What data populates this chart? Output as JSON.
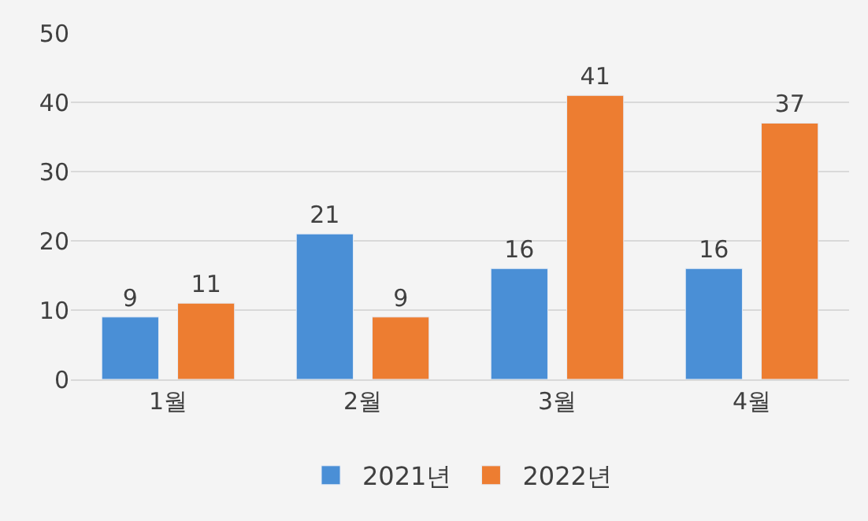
{
  "chart_data": {
    "type": "bar",
    "categories": [
      "1월",
      "2월",
      "3월",
      "4월"
    ],
    "series": [
      {
        "name": "2021년",
        "color": "#4a8fd6",
        "values": [
          9,
          21,
          16,
          16
        ]
      },
      {
        "name": "2022년",
        "color": "#ed7d31",
        "values": [
          11,
          9,
          41,
          37
        ]
      }
    ],
    "ylim": [
      0,
      50
    ],
    "yticks": [
      0,
      10,
      20,
      30,
      40,
      50
    ],
    "grid": "y",
    "legend": "bottom",
    "data_labels": true
  }
}
